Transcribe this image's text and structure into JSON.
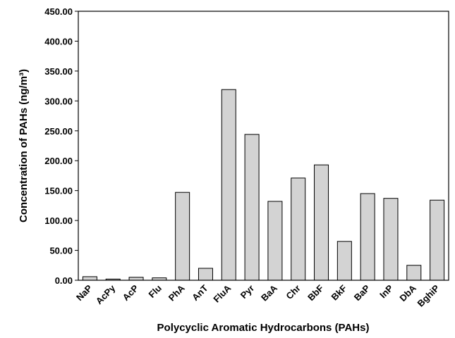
{
  "chart_data": {
    "type": "bar",
    "xlabel": "Polycyclic Aromatic Hydrocarbons (PAHs)",
    "ylabel": "Concentration of PAHs (ng/m³)",
    "categories": [
      "NaP",
      "AcPy",
      "AcP",
      "Flu",
      "PhA",
      "AnT",
      "FluA",
      "Pyr",
      "BaA",
      "Chr",
      "BbF",
      "BkF",
      "BaP",
      "InP",
      "DbA",
      "BghiP"
    ],
    "values": [
      6,
      2,
      5,
      4,
      147,
      20,
      319,
      244,
      132,
      171,
      193,
      65,
      145,
      137,
      25,
      134
    ],
    "color": "#d3d3d3",
    "ylim": [
      0,
      450
    ],
    "yticks": [
      {
        "value": 0,
        "label": "0.00"
      },
      {
        "value": 50,
        "label": "50.00"
      },
      {
        "value": 100,
        "label": "100.00"
      },
      {
        "value": 150,
        "label": "150.00"
      },
      {
        "value": 200,
        "label": "200.00"
      },
      {
        "value": 250,
        "label": "250.00"
      },
      {
        "value": 300,
        "label": "300.00"
      },
      {
        "value": 350,
        "label": "350.00"
      },
      {
        "value": 400,
        "label": "400.00"
      },
      {
        "value": 450,
        "label": "450.00"
      }
    ],
    "grid": false
  }
}
